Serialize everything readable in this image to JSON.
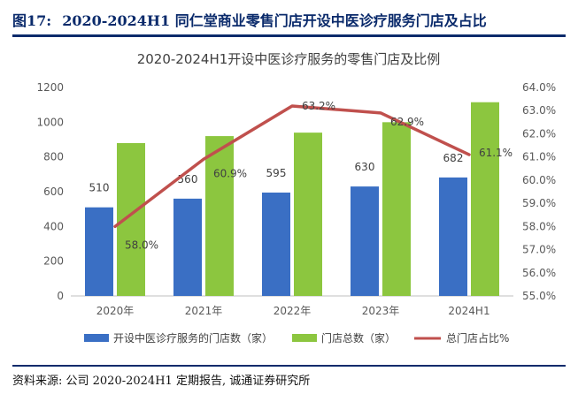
{
  "figure": {
    "number": "图17:",
    "title": "2020-2024H1 同仁堂商业零售门店开设中医诊疗服务门店及占比",
    "source": "资料来源: 公司 2020-2024H1 定期报告, 诚通证券研究所"
  },
  "chart_data": {
    "type": "bar+line",
    "title": "2020-2024H1开设中医诊疗服务的零售门店及比例",
    "categories": [
      "2020年",
      "2021年",
      "2022年",
      "2023年",
      "2024H1"
    ],
    "series": [
      {
        "name": "开设中医诊疗服务的门店数（家）",
        "type": "bar",
        "axis": "left",
        "color": "#3a6fc4",
        "values": [
          510,
          560,
          595,
          630,
          682
        ],
        "labels": [
          "510",
          "560",
          "595",
          "630",
          "682"
        ]
      },
      {
        "name": "门店总数（家）",
        "type": "bar",
        "axis": "left",
        "color": "#8cc63f",
        "values": [
          880,
          920,
          940,
          1000,
          1115
        ]
      },
      {
        "name": "总门店占比%",
        "type": "line",
        "axis": "right",
        "color": "#c0504d",
        "values": [
          58.0,
          60.9,
          63.2,
          62.9,
          61.1
        ],
        "labels": [
          "58.0%",
          "60.9%",
          "63.2%",
          "62.9%",
          "61.1%"
        ]
      }
    ],
    "y_left": {
      "min": 0,
      "max": 1200,
      "step": 200,
      "ticks": [
        "0",
        "200",
        "400",
        "600",
        "800",
        "1000",
        "1200"
      ]
    },
    "y_right": {
      "min": 55.0,
      "max": 64.0,
      "step": 1.0,
      "ticks": [
        "55.0%",
        "56.0%",
        "57.0%",
        "58.0%",
        "59.0%",
        "60.0%",
        "61.0%",
        "62.0%",
        "63.0%",
        "64.0%"
      ]
    },
    "legend_position": "bottom",
    "grid": false
  }
}
